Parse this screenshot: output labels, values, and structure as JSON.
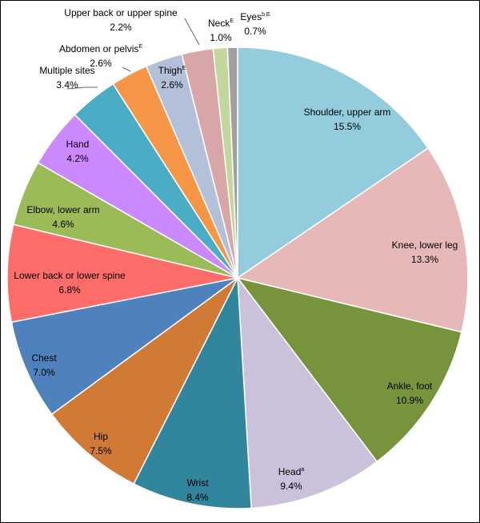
{
  "chart_data": {
    "type": "pie",
    "title": "",
    "start_angle_deg": 0,
    "direction": "clockwise",
    "slices": [
      {
        "label": "Shoulder, upper arm",
        "sup": "",
        "value": 15.5,
        "value_text": "15.5%",
        "color": "#93cddd"
      },
      {
        "label": "Knee, lower leg",
        "sup": "",
        "value": 13.3,
        "value_text": "13.3%",
        "color": "#e6b9b8"
      },
      {
        "label": "Ankle, foot",
        "sup": "",
        "value": 10.9,
        "value_text": "10.9%",
        "color": "#77933c"
      },
      {
        "label": "Head",
        "sup": "a",
        "value": 9.4,
        "value_text": "9.4%",
        "color": "#ccc1da"
      },
      {
        "label": "Wrist",
        "sup": "",
        "value": 8.4,
        "value_text": "8.4%",
        "color": "#31859c"
      },
      {
        "label": "Hip",
        "sup": "",
        "value": 7.5,
        "value_text": "7.5%",
        "color": "#d07a35"
      },
      {
        "label": "Chest",
        "sup": "",
        "value": 7.0,
        "value_text": "7.0%",
        "color": "#4f81bd"
      },
      {
        "label": "Lower back or lower spine",
        "sup": "",
        "value": 6.8,
        "value_text": "6.8%",
        "color": "#ff6d6b"
      },
      {
        "label": "Elbow, lower arm",
        "sup": "",
        "value": 4.6,
        "value_text": "4.6%",
        "color": "#9bbb59"
      },
      {
        "label": "Hand",
        "sup": "",
        "value": 4.2,
        "value_text": "4.2%",
        "color": "#cc88ff"
      },
      {
        "label": "Multiple sites",
        "sup": "",
        "value": 3.4,
        "value_text": "3.4%",
        "color": "#4bacc6"
      },
      {
        "label": "Abdomen or pelvis",
        "sup": "E",
        "value": 2.6,
        "value_text": "2.6%",
        "color": "#f79646"
      },
      {
        "label": "Thigh",
        "sup": "E",
        "value": 2.6,
        "value_text": "2.6%",
        "color": "#b3c0da"
      },
      {
        "label": "Upper back or upper spine",
        "sup": "",
        "value": 2.2,
        "value_text": "2.2%",
        "color": "#d9a6a8"
      },
      {
        "label": "Neck",
        "sup": "E",
        "value": 1.0,
        "value_text": "1.0%",
        "color": "#c3d69b"
      },
      {
        "label": "Eyes",
        "sup": "b,E",
        "value": 0.7,
        "value_text": "0.7%",
        "color": "#a0a0a0"
      }
    ]
  }
}
